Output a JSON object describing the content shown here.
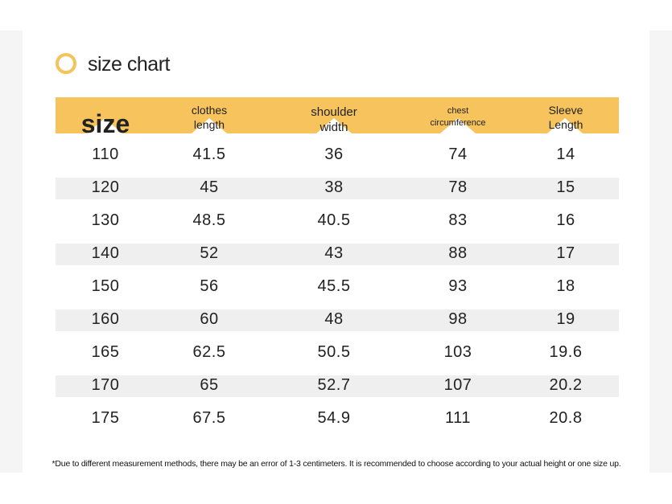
{
  "title": "size chart",
  "accent_color": "#f6c35c",
  "icon": "ring-icon",
  "headers": {
    "size": "size",
    "clothes_length": [
      "clothes",
      "length"
    ],
    "shoulder_width": [
      "shoulder",
      "width"
    ],
    "chest_circumference": [
      "chest",
      "circumference"
    ],
    "sleeve_length": [
      "Sleeve",
      "Length"
    ]
  },
  "rows": [
    [
      "110",
      "41.5",
      "36",
      "74",
      "14"
    ],
    [
      "120",
      "45",
      "38",
      "78",
      "15"
    ],
    [
      "130",
      "48.5",
      "40.5",
      "83",
      "16"
    ],
    [
      "140",
      "52",
      "43",
      "88",
      "17"
    ],
    [
      "150",
      "56",
      "45.5",
      "93",
      "18"
    ],
    [
      "160",
      "60",
      "48",
      "98",
      "19"
    ],
    [
      "165",
      "62.5",
      "50.5",
      "103",
      "19.6"
    ],
    [
      "170",
      "65",
      "52.7",
      "107",
      "20.2"
    ],
    [
      "175",
      "67.5",
      "54.9",
      "111",
      "20.8"
    ]
  ],
  "footnote": "*Due to different measurement methods, there may be an error of 1-3 centimeters. It is recommended to choose according to your actual height or one size up."
}
